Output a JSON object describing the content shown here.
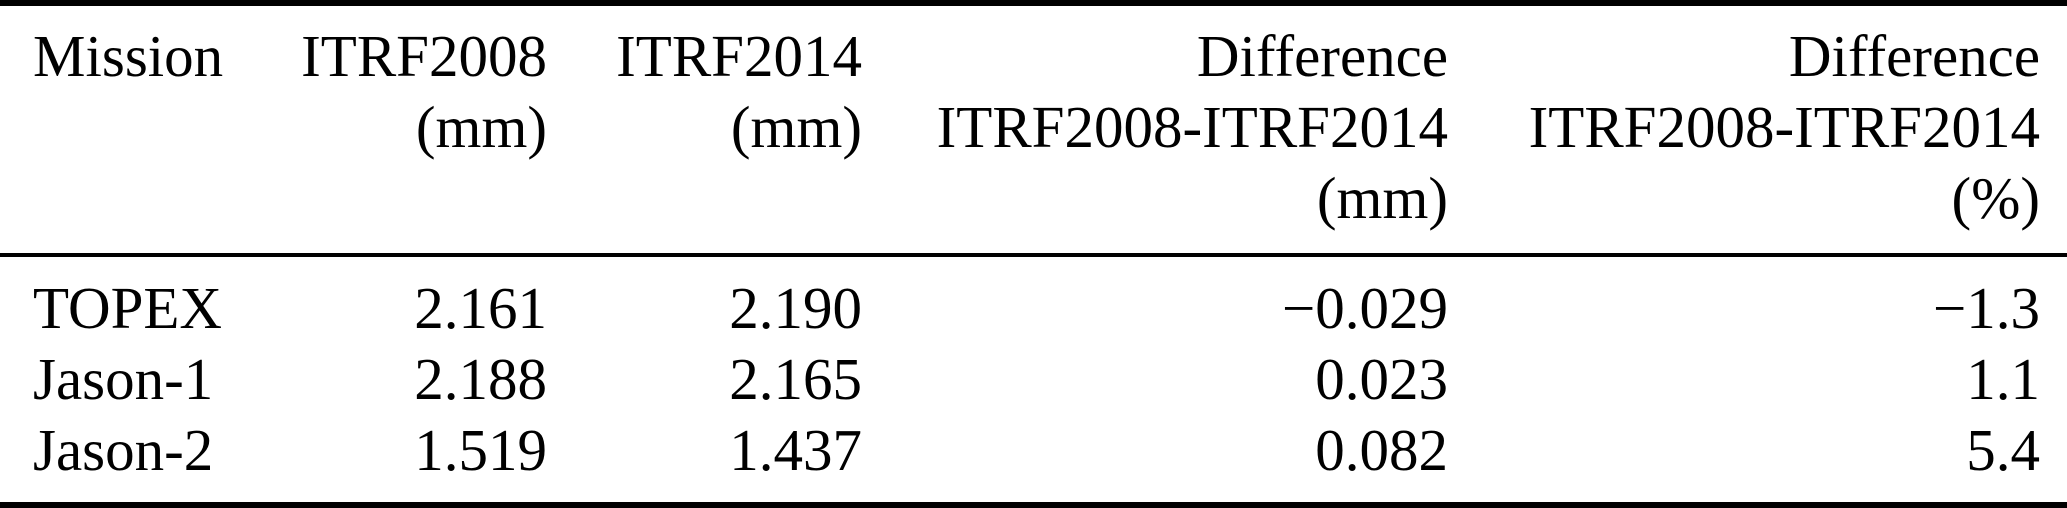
{
  "colors": {
    "background": "#ffffff",
    "text": "#000000",
    "rule": "#000000"
  },
  "table": {
    "header": {
      "mission": {
        "line1": "Mission"
      },
      "itrf2008": {
        "line1": "ITRF2008",
        "line2": "(mm)"
      },
      "itrf2014": {
        "line1": "ITRF2014",
        "line2": "(mm)"
      },
      "diff_mm": {
        "line1": "Difference",
        "line2": "ITRF2008-ITRF2014",
        "line3": "(mm)"
      },
      "diff_pct": {
        "line1": "Difference",
        "line2": "ITRF2008-ITRF2014",
        "line3": "(%)"
      }
    },
    "rows": [
      {
        "mission": "TOPEX",
        "itrf2008_mm": "2.161",
        "itrf2014_mm": "2.190",
        "diff_mm": "−0.029",
        "diff_pct": "−1.3"
      },
      {
        "mission": "Jason-1",
        "itrf2008_mm": "2.188",
        "itrf2014_mm": "2.165",
        "diff_mm": "0.023",
        "diff_pct": "1.1"
      },
      {
        "mission": "Jason-2",
        "itrf2008_mm": "1.519",
        "itrf2014_mm": "1.437",
        "diff_mm": "0.082",
        "diff_pct": "5.4"
      }
    ]
  }
}
